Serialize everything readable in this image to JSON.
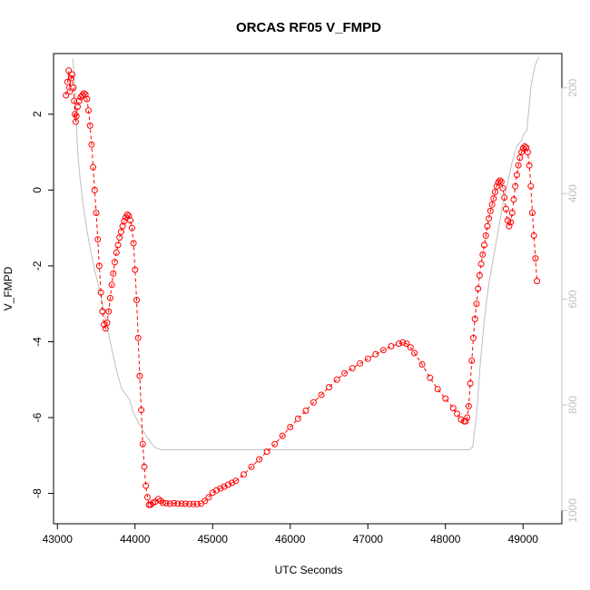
{
  "chart_data": {
    "type": "scatter",
    "title": "ORCAS RF05 V_FMPD",
    "xlabel": "UTC Seconds",
    "ylabel": "V_FMPD",
    "xlim": [
      42950,
      49500
    ],
    "ylim": [
      -8.8,
      3.6
    ],
    "y2lim": [
      1025,
      135
    ],
    "xticks": [
      "43000",
      "44000",
      "45000",
      "46000",
      "47000",
      "48000",
      "49000"
    ],
    "yticks": [
      "-8",
      "-6",
      "-4",
      "-2",
      "0",
      "2"
    ],
    "y2ticks": [
      "200",
      "400",
      "600",
      "800",
      "1000"
    ],
    "colors": {
      "points": "#ff0000",
      "secondary": "#bfbfbf",
      "axis": "#000000"
    },
    "series": [
      {
        "marker": "open-circle",
        "color": "#ff0000",
        "points": [
          [
            43110,
            2.5
          ],
          [
            43130,
            2.85
          ],
          [
            43145,
            3.15
          ],
          [
            43160,
            2.6
          ],
          [
            43175,
            2.95
          ],
          [
            43190,
            3.05
          ],
          [
            43205,
            2.7
          ],
          [
            43215,
            2.35
          ],
          [
            43225,
            2.0
          ],
          [
            43235,
            1.8
          ],
          [
            43245,
            1.95
          ],
          [
            43260,
            2.2
          ],
          [
            43280,
            2.35
          ],
          [
            43300,
            2.45
          ],
          [
            43320,
            2.5
          ],
          [
            43340,
            2.55
          ],
          [
            43360,
            2.52
          ],
          [
            43380,
            2.4
          ],
          [
            43400,
            2.1
          ],
          [
            43420,
            1.7
          ],
          [
            43440,
            1.2
          ],
          [
            43460,
            0.6
          ],
          [
            43480,
            0.0
          ],
          [
            43500,
            -0.6
          ],
          [
            43520,
            -1.3
          ],
          [
            43540,
            -2.0
          ],
          [
            43560,
            -2.7
          ],
          [
            43580,
            -3.2
          ],
          [
            43600,
            -3.55
          ],
          [
            43620,
            -3.65
          ],
          [
            43640,
            -3.5
          ],
          [
            43660,
            -3.2
          ],
          [
            43680,
            -2.85
          ],
          [
            43700,
            -2.5
          ],
          [
            43720,
            -2.2
          ],
          [
            43740,
            -1.9
          ],
          [
            43760,
            -1.65
          ],
          [
            43780,
            -1.45
          ],
          [
            43800,
            -1.25
          ],
          [
            43820,
            -1.1
          ],
          [
            43840,
            -0.95
          ],
          [
            43860,
            -0.82
          ],
          [
            43880,
            -0.72
          ],
          [
            43900,
            -0.65
          ],
          [
            43920,
            -0.68
          ],
          [
            43940,
            -0.8
          ],
          [
            43960,
            -1.0
          ],
          [
            43980,
            -1.4
          ],
          [
            44000,
            -2.1
          ],
          [
            44020,
            -2.9
          ],
          [
            44040,
            -3.9
          ],
          [
            44060,
            -4.9
          ],
          [
            44080,
            -5.8
          ],
          [
            44100,
            -6.7
          ],
          [
            44120,
            -7.3
          ],
          [
            44140,
            -7.8
          ],
          [
            44160,
            -8.1
          ],
          [
            44180,
            -8.3
          ],
          [
            44200,
            -8.3
          ],
          [
            44230,
            -8.25
          ],
          [
            44260,
            -8.22
          ],
          [
            44300,
            -8.15
          ],
          [
            44330,
            -8.2
          ],
          [
            44360,
            -8.25
          ],
          [
            44400,
            -8.26
          ],
          [
            44450,
            -8.27
          ],
          [
            44500,
            -8.26
          ],
          [
            44550,
            -8.27
          ],
          [
            44600,
            -8.27
          ],
          [
            44650,
            -8.27
          ],
          [
            44700,
            -8.28
          ],
          [
            44750,
            -8.28
          ],
          [
            44800,
            -8.28
          ],
          [
            44850,
            -8.27
          ],
          [
            44900,
            -8.2
          ],
          [
            44950,
            -8.1
          ],
          [
            45000,
            -7.98
          ],
          [
            45050,
            -7.92
          ],
          [
            45100,
            -7.87
          ],
          [
            45150,
            -7.82
          ],
          [
            45200,
            -7.77
          ],
          [
            45250,
            -7.72
          ],
          [
            45300,
            -7.67
          ],
          [
            45400,
            -7.5
          ],
          [
            45500,
            -7.3
          ],
          [
            45600,
            -7.1
          ],
          [
            45700,
            -6.9
          ],
          [
            45800,
            -6.7
          ],
          [
            45900,
            -6.48
          ],
          [
            46000,
            -6.25
          ],
          [
            46100,
            -6.03
          ],
          [
            46200,
            -5.82
          ],
          [
            46300,
            -5.6
          ],
          [
            46400,
            -5.4
          ],
          [
            46500,
            -5.2
          ],
          [
            46600,
            -5.0
          ],
          [
            46700,
            -4.83
          ],
          [
            46800,
            -4.7
          ],
          [
            46900,
            -4.57
          ],
          [
            47000,
            -4.45
          ],
          [
            47100,
            -4.33
          ],
          [
            47200,
            -4.22
          ],
          [
            47300,
            -4.12
          ],
          [
            47400,
            -4.05
          ],
          [
            47450,
            -4.02
          ],
          [
            47500,
            -4.05
          ],
          [
            47550,
            -4.15
          ],
          [
            47600,
            -4.3
          ],
          [
            47700,
            -4.6
          ],
          [
            47800,
            -4.95
          ],
          [
            47900,
            -5.25
          ],
          [
            48000,
            -5.5
          ],
          [
            48100,
            -5.75
          ],
          [
            48150,
            -5.9
          ],
          [
            48200,
            -6.05
          ],
          [
            48240,
            -6.1
          ],
          [
            48260,
            -6.1
          ],
          [
            48280,
            -6.0
          ],
          [
            48300,
            -5.7
          ],
          [
            48320,
            -5.1
          ],
          [
            48340,
            -4.5
          ],
          [
            48360,
            -3.9
          ],
          [
            48380,
            -3.4
          ],
          [
            48400,
            -3.0
          ],
          [
            48420,
            -2.6
          ],
          [
            48440,
            -2.25
          ],
          [
            48460,
            -1.95
          ],
          [
            48480,
            -1.7
          ],
          [
            48500,
            -1.45
          ],
          [
            48520,
            -1.2
          ],
          [
            48540,
            -0.95
          ],
          [
            48560,
            -0.75
          ],
          [
            48580,
            -0.55
          ],
          [
            48600,
            -0.38
          ],
          [
            48620,
            -0.22
          ],
          [
            48640,
            -0.05
          ],
          [
            48660,
            0.1
          ],
          [
            48680,
            0.2
          ],
          [
            48700,
            0.25
          ],
          [
            48720,
            0.22
          ],
          [
            48740,
            0.05
          ],
          [
            48760,
            -0.2
          ],
          [
            48780,
            -0.5
          ],
          [
            48800,
            -0.8
          ],
          [
            48820,
            -0.95
          ],
          [
            48840,
            -0.85
          ],
          [
            48860,
            -0.6
          ],
          [
            48880,
            -0.25
          ],
          [
            48900,
            0.1
          ],
          [
            48920,
            0.4
          ],
          [
            48940,
            0.65
          ],
          [
            48960,
            0.85
          ],
          [
            48980,
            1.0
          ],
          [
            49000,
            1.1
          ],
          [
            49020,
            1.15
          ],
          [
            49040,
            1.12
          ],
          [
            49060,
            1.0
          ],
          [
            49080,
            0.65
          ],
          [
            49100,
            0.1
          ],
          [
            49120,
            -0.6
          ],
          [
            49140,
            -1.2
          ],
          [
            49160,
            -1.8
          ],
          [
            49180,
            -2.4
          ]
        ]
      },
      {
        "marker": "line",
        "color": "#bfbfbf",
        "points": [
          [
            43200,
            145
          ],
          [
            43230,
            210
          ],
          [
            43260,
            320
          ],
          [
            43290,
            370
          ],
          [
            43330,
            420
          ],
          [
            43380,
            470
          ],
          [
            43430,
            510
          ],
          [
            43480,
            545
          ],
          [
            43530,
            575
          ],
          [
            43580,
            610
          ],
          [
            43630,
            645
          ],
          [
            43680,
            680
          ],
          [
            43730,
            715
          ],
          [
            43780,
            745
          ],
          [
            43830,
            770
          ],
          [
            43880,
            780
          ],
          [
            43930,
            790
          ],
          [
            43980,
            815
          ],
          [
            44050,
            835
          ],
          [
            44150,
            860
          ],
          [
            44250,
            880
          ],
          [
            44330,
            885
          ],
          [
            45000,
            885
          ],
          [
            46000,
            885
          ],
          [
            47000,
            885
          ],
          [
            48000,
            885
          ],
          [
            48300,
            885
          ],
          [
            48350,
            880
          ],
          [
            48400,
            820
          ],
          [
            48450,
            720
          ],
          [
            48500,
            640
          ],
          [
            48560,
            570
          ],
          [
            48620,
            520
          ],
          [
            48680,
            470
          ],
          [
            48740,
            420
          ],
          [
            48800,
            380
          ],
          [
            48860,
            340
          ],
          [
            48920,
            310
          ],
          [
            48980,
            300
          ],
          [
            49000,
            290
          ],
          [
            49050,
            280
          ],
          [
            49100,
            200
          ],
          [
            49150,
            160
          ],
          [
            49200,
            142
          ]
        ]
      }
    ]
  }
}
